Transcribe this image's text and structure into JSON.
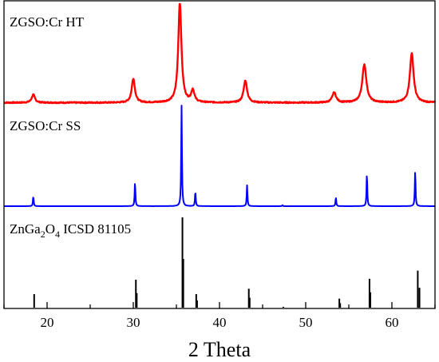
{
  "chart_data": {
    "type": "line",
    "x_range": [
      15,
      65
    ],
    "xlabel": "2 Theta",
    "x_ticks": [
      20,
      30,
      40,
      50,
      60
    ],
    "grid": false,
    "panels": [
      {
        "label": "ZGSO:Cr HT",
        "style": "profile",
        "color": "#ff0000",
        "baseline": 0.02,
        "noise": 0.006,
        "peaks": [
          {
            "x": 18.4,
            "h": 0.08,
            "w": 0.22
          },
          {
            "x": 30.0,
            "h": 0.24,
            "w": 0.22
          },
          {
            "x": 35.4,
            "h": 1.0,
            "w": 0.22
          },
          {
            "x": 36.9,
            "h": 0.12,
            "w": 0.22
          },
          {
            "x": 43.0,
            "h": 0.22,
            "w": 0.24
          },
          {
            "x": 53.3,
            "h": 0.1,
            "w": 0.26
          },
          {
            "x": 56.8,
            "h": 0.38,
            "w": 0.28
          },
          {
            "x": 62.3,
            "h": 0.49,
            "w": 0.26
          }
        ]
      },
      {
        "label": "ZGSO:Cr SS",
        "style": "profile",
        "color": "#0000ff",
        "baseline": 0.0,
        "noise": 0.0,
        "peaks": [
          {
            "x": 18.4,
            "h": 0.1,
            "w": 0.05
          },
          {
            "x": 30.2,
            "h": 0.24,
            "w": 0.05
          },
          {
            "x": 35.6,
            "h": 1.0,
            "w": 0.05
          },
          {
            "x": 37.2,
            "h": 0.15,
            "w": 0.05
          },
          {
            "x": 43.2,
            "h": 0.21,
            "w": 0.05
          },
          {
            "x": 47.3,
            "h": 0.01,
            "w": 0.05
          },
          {
            "x": 53.5,
            "h": 0.09,
            "w": 0.05
          },
          {
            "x": 57.1,
            "h": 0.33,
            "w": 0.05
          },
          {
            "x": 62.7,
            "h": 0.36,
            "w": 0.05
          }
        ]
      },
      {
        "label_parts": [
          "ZnGa",
          "2",
          "O",
          "4",
          " ICSD 81105"
        ],
        "style": "sticks",
        "color": "#000000",
        "sticks": [
          {
            "x": 18.5,
            "h": 0.15
          },
          {
            "x": 30.3,
            "h": 0.31
          },
          {
            "x": 30.4,
            "h": 0.16
          },
          {
            "x": 35.7,
            "h": 1.0
          },
          {
            "x": 35.8,
            "h": 0.54
          },
          {
            "x": 37.3,
            "h": 0.15
          },
          {
            "x": 37.4,
            "h": 0.08
          },
          {
            "x": 43.4,
            "h": 0.21
          },
          {
            "x": 43.5,
            "h": 0.11
          },
          {
            "x": 47.4,
            "h": 0.01
          },
          {
            "x": 53.9,
            "h": 0.1
          },
          {
            "x": 54.0,
            "h": 0.05
          },
          {
            "x": 57.4,
            "h": 0.32
          },
          {
            "x": 57.5,
            "h": 0.17
          },
          {
            "x": 63.0,
            "h": 0.41
          },
          {
            "x": 63.2,
            "h": 0.22
          }
        ]
      }
    ]
  }
}
